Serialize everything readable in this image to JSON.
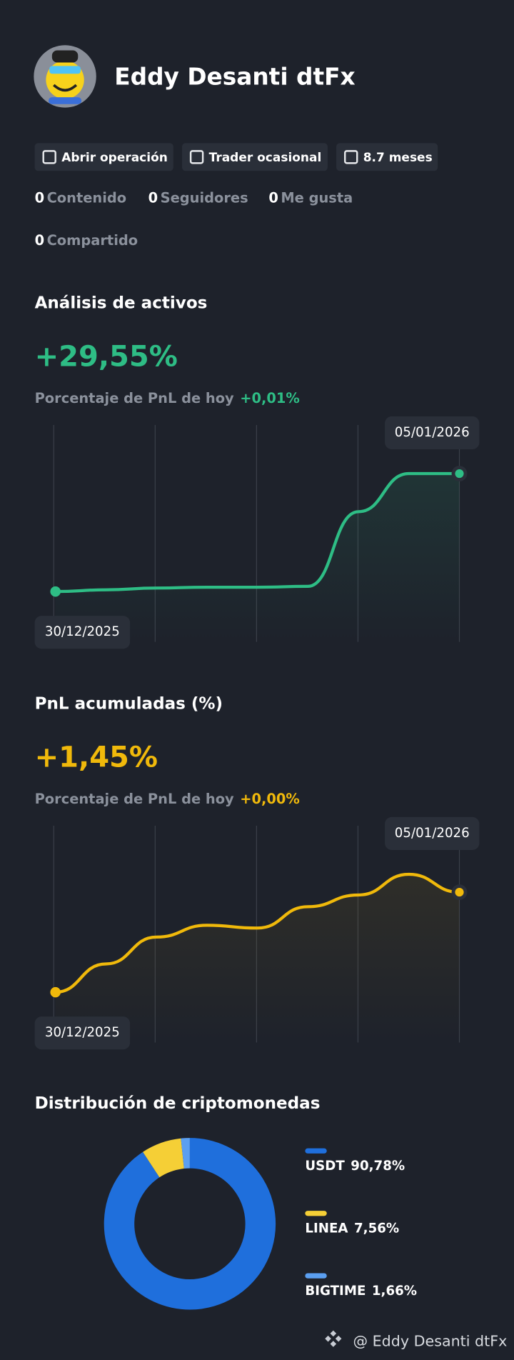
{
  "profile": {
    "name": "Eddy Desanti dtFx",
    "badges": [
      "Abrir operación",
      "Trader ocasional",
      "8.7 meses"
    ],
    "stats": [
      {
        "value": 0,
        "label": "Contenido"
      },
      {
        "value": 0,
        "label": "Seguidores"
      },
      {
        "value": 0,
        "label": "Me gusta"
      },
      {
        "value": 0,
        "label": "Compartido"
      }
    ]
  },
  "asset_analysis": {
    "title": "Análisis de activos",
    "headline": "+29,55%",
    "today_label": "Porcentaje de PnL de hoy",
    "today_value": "+0,01%",
    "start_date": "30/12/2025",
    "end_date": "05/01/2026",
    "color": "#2ebd85",
    "values": [
      0,
      0.43,
      0.87,
      1.09,
      1.09,
      1.3,
      20,
      29.55,
      29.55
    ]
  },
  "pnl_cumulative": {
    "title": "PnL acumuladas (%)",
    "headline": "+1,45%",
    "today_label": "Porcentaje de PnL de hoy",
    "today_value": "+0,00%",
    "start_date": "30/12/2025",
    "end_date": "05/01/2026",
    "color": "#f0b90b",
    "values": [
      0,
      0.41,
      0.8,
      0.97,
      0.93,
      1.24,
      1.41,
      1.71,
      1.45
    ]
  },
  "distribution": {
    "type": "pie",
    "title": "Distribución de criptomonedas",
    "categories": [
      "USDT",
      "LINEA",
      "BIGTIME"
    ],
    "values": [
      90.78,
      7.56,
      1.66
    ],
    "value_labels": [
      "90,78%",
      "7,56%",
      "1,66%"
    ],
    "colors": [
      "#1f6fdc",
      "#f5cf36",
      "#5b9ff0"
    ]
  },
  "footer": "@ Eddy Desanti dtFx"
}
